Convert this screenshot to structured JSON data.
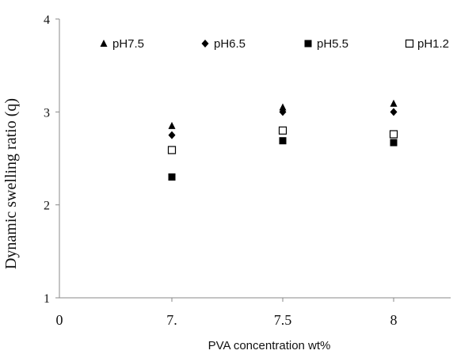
{
  "chart_data": {
    "type": "scatter",
    "categories": [
      "7",
      "7.5",
      "8"
    ],
    "x_tick_labels": [
      "0",
      "7.",
      "7.5",
      "8"
    ],
    "y_ticks": [
      "1",
      "2",
      "3",
      "4"
    ],
    "ylim": [
      1,
      4
    ],
    "xlabel": "PVA concentration wt%",
    "ylabel": "Dynamic swelling ratio (q)",
    "grid": false,
    "legend_position": "top",
    "series": [
      {
        "name": "pH7.5",
        "marker": "triangle",
        "color": "#000000",
        "values": [
          2.85,
          3.05,
          3.09
        ]
      },
      {
        "name": "pH6.5",
        "marker": "diamond",
        "color": "#000000",
        "values": [
          2.75,
          3.0,
          3.0
        ]
      },
      {
        "name": "pH5.5",
        "marker": "square-filled",
        "color": "#000000",
        "values": [
          2.3,
          2.69,
          2.67
        ]
      },
      {
        "name": "pH1.2",
        "marker": "square-open",
        "color": "#000000",
        "values": [
          2.59,
          2.8,
          2.76
        ]
      }
    ]
  }
}
